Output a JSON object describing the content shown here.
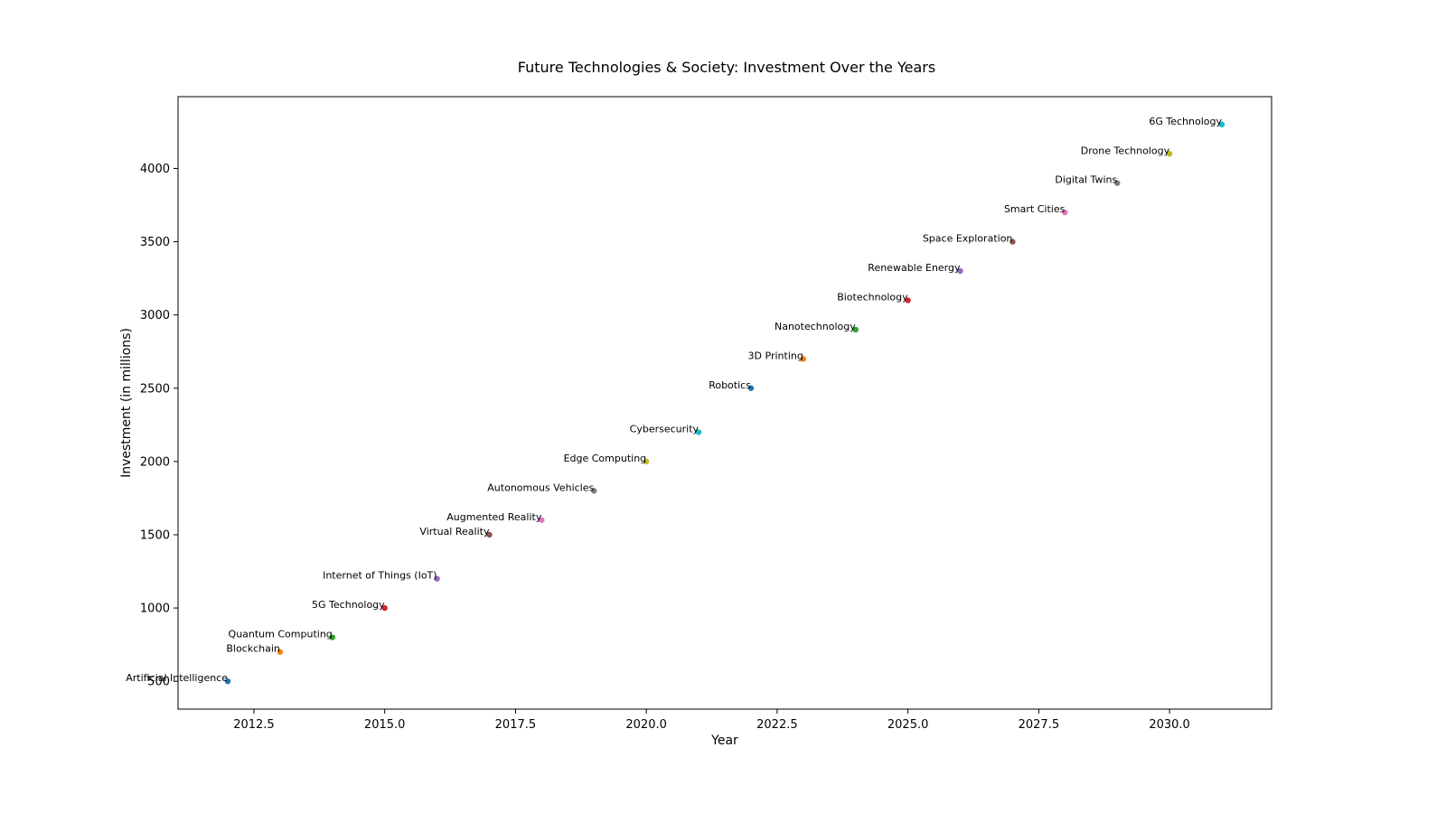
{
  "chart_data": {
    "type": "scatter",
    "title": "Future Technologies & Society: Investment Over the Years",
    "xlabel": "Year",
    "ylabel": "Investment (in millions)",
    "xlim": [
      2011.05,
      2031.95
    ],
    "ylim": [
      310,
      4490
    ],
    "x_ticks": [
      2012.5,
      2015.0,
      2017.5,
      2020.0,
      2022.5,
      2025.0,
      2027.5,
      2030.0
    ],
    "x_tick_labels": [
      "2012.5",
      "2015.0",
      "2017.5",
      "2020.0",
      "2022.5",
      "2025.0",
      "2027.5",
      "2030.0"
    ],
    "y_ticks": [
      500,
      1000,
      1500,
      2000,
      2500,
      3000,
      3500,
      4000
    ],
    "y_tick_labels": [
      "500",
      "1000",
      "1500",
      "2000",
      "2500",
      "3000",
      "3500",
      "4000"
    ],
    "grid": false,
    "points": [
      {
        "label": "Artificial Intelligence",
        "x": 2012,
        "y": 500,
        "color": "#1f77b4"
      },
      {
        "label": "Blockchain",
        "x": 2013,
        "y": 700,
        "color": "#ff7f0e"
      },
      {
        "label": "Quantum Computing",
        "x": 2014,
        "y": 800,
        "color": "#2ca02c"
      },
      {
        "label": "5G Technology",
        "x": 2015,
        "y": 1000,
        "color": "#d62728"
      },
      {
        "label": "Internet of Things (IoT)",
        "x": 2016,
        "y": 1200,
        "color": "#9467bd"
      },
      {
        "label": "Virtual Reality",
        "x": 2017,
        "y": 1500,
        "color": "#8c564b"
      },
      {
        "label": "Augmented Reality",
        "x": 2018,
        "y": 1600,
        "color": "#e377c2"
      },
      {
        "label": "Autonomous Vehicles",
        "x": 2019,
        "y": 1800,
        "color": "#7f7f7f"
      },
      {
        "label": "Edge Computing",
        "x": 2020,
        "y": 2000,
        "color": "#bcbd22"
      },
      {
        "label": "Cybersecurity",
        "x": 2021,
        "y": 2200,
        "color": "#17becf"
      },
      {
        "label": "Robotics",
        "x": 2022,
        "y": 2500,
        "color": "#1f77b4"
      },
      {
        "label": "3D Printing",
        "x": 2023,
        "y": 2700,
        "color": "#ff7f0e"
      },
      {
        "label": "Nanotechnology",
        "x": 2024,
        "y": 2900,
        "color": "#2ca02c"
      },
      {
        "label": "Biotechnology",
        "x": 2025,
        "y": 3100,
        "color": "#d62728"
      },
      {
        "label": "Renewable Energy",
        "x": 2026,
        "y": 3300,
        "color": "#9467bd"
      },
      {
        "label": "Space Exploration",
        "x": 2027,
        "y": 3500,
        "color": "#8c564b"
      },
      {
        "label": "Smart Cities",
        "x": 2028,
        "y": 3700,
        "color": "#e377c2"
      },
      {
        "label": "Digital Twins",
        "x": 2029,
        "y": 3900,
        "color": "#7f7f7f"
      },
      {
        "label": "Drone Technology",
        "x": 2030,
        "y": 4100,
        "color": "#bcbd22"
      },
      {
        "label": "6G Technology",
        "x": 2031,
        "y": 4300,
        "color": "#17becf"
      }
    ]
  }
}
